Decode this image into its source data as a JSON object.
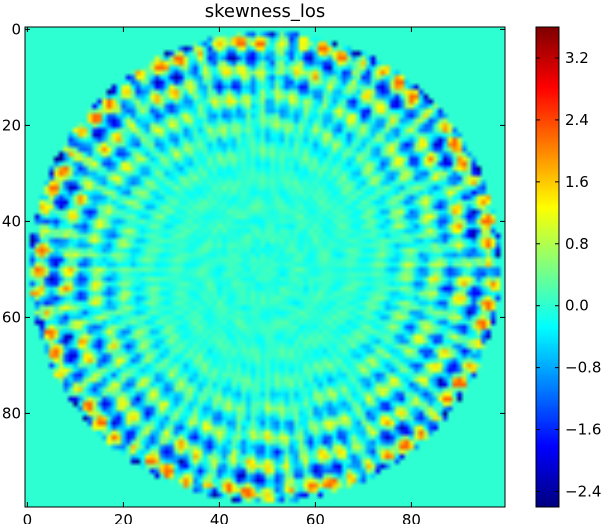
{
  "chart_data": {
    "type": "heatmap",
    "title": "skewness_los",
    "colormap": "jet",
    "grid": false,
    "xlim": [
      0,
      99
    ],
    "ylim": [
      99,
      0
    ],
    "x_ticks": [
      0,
      20,
      40,
      60,
      80
    ],
    "y_ticks": [
      0,
      20,
      40,
      60,
      80
    ],
    "colorbar": {
      "position": "right",
      "vmin": -2.6,
      "vmax": 3.6,
      "ticks": [
        3.2,
        2.4,
        1.6,
        0.8,
        0.0,
        -0.8,
        -1.6,
        -2.4
      ],
      "tick_labels": [
        "3.2",
        "2.4",
        "1.6",
        "0.8",
        "0.0",
        "−0.8",
        "−1.6",
        "−2.4"
      ]
    },
    "grid_size": [
      100,
      100
    ],
    "pattern": {
      "disk_center": [
        49.5,
        49.5
      ],
      "disk_radius": 49,
      "quiet_core_radius": 20,
      "background_value": 0.0
    }
  }
}
